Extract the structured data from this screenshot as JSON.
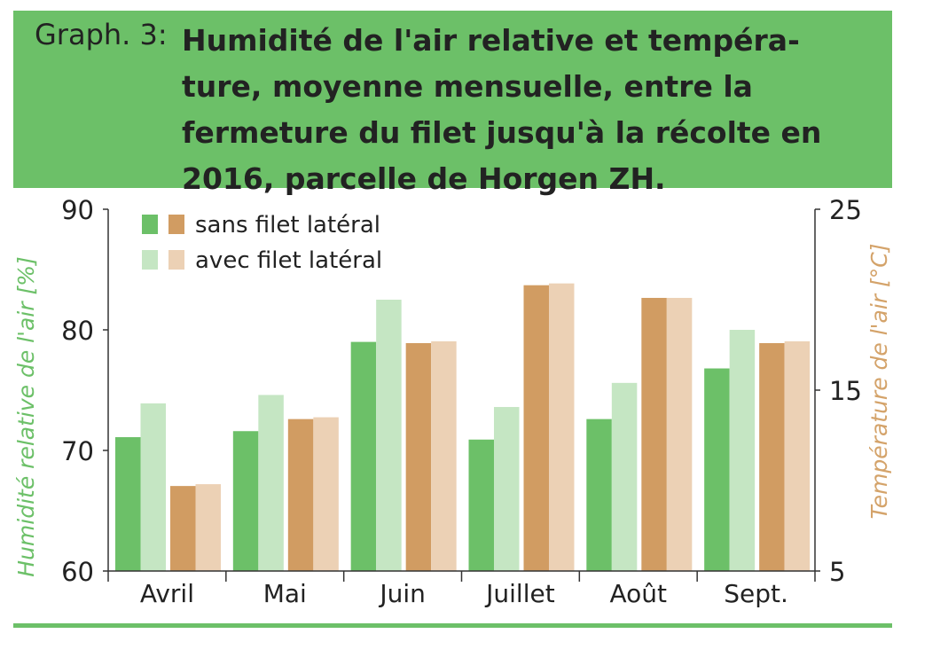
{
  "header": {
    "prefix": "Graph. 3:",
    "title": "Humidité de l'air relative et tempéra-ture, moyenne mensuelle, entre la fermeture du filet jusqu'à la récolte en 2016, parcelle de Horgen ZH."
  },
  "chart_data": {
    "type": "bar",
    "title": "Humidité de l'air relative et température, moyenne mensuelle, entre la fermeture du filet jusqu'à la récolte en 2016, parcelle de Horgen ZH.",
    "categories": [
      "Avril",
      "Mai",
      "Juin",
      "Juillet",
      "Août",
      "Sept."
    ],
    "ylabel_left": "Humidité relative de l'air [%]",
    "ylabel_right": "Température de l'air [°C]",
    "ylim_left": [
      60,
      90
    ],
    "ylim_right": [
      5,
      25
    ],
    "yticks_left": [
      "60",
      "70",
      "80",
      "90"
    ],
    "yticks_right": [
      "5",
      "15",
      "25"
    ],
    "legend_position": "top-left",
    "legend": [
      {
        "label": "sans filet latéral"
      },
      {
        "label": "avec filet latéral"
      }
    ],
    "series": [
      {
        "name": "sans filet latéral",
        "quantity": "humidity",
        "axis": "left",
        "color": "#6cc068",
        "values": [
          71.1,
          71.6,
          79.0,
          70.9,
          72.6,
          76.8
        ]
      },
      {
        "name": "avec filet latéral",
        "quantity": "humidity",
        "axis": "left",
        "color": "#c5e6c3",
        "values": [
          73.9,
          74.6,
          82.5,
          73.6,
          75.6,
          80.0
        ]
      },
      {
        "name": "sans filet latéral",
        "quantity": "temperature",
        "axis": "right",
        "color": "#d19c62",
        "values": [
          9.7,
          13.4,
          17.6,
          20.8,
          20.1,
          17.6
        ]
      },
      {
        "name": "avec filet latéral",
        "quantity": "temperature",
        "axis": "right",
        "color": "#ecd1b5",
        "values": [
          9.8,
          13.5,
          17.7,
          20.9,
          20.1,
          17.7
        ]
      }
    ],
    "colors": {
      "green_dark": "#6cc068",
      "green_light": "#c5e6c3",
      "tan_dark": "#d19c62",
      "tan_light": "#ecd1b5",
      "left_axis_label": "#6cc068",
      "right_axis_label": "#d4a36a"
    }
  }
}
